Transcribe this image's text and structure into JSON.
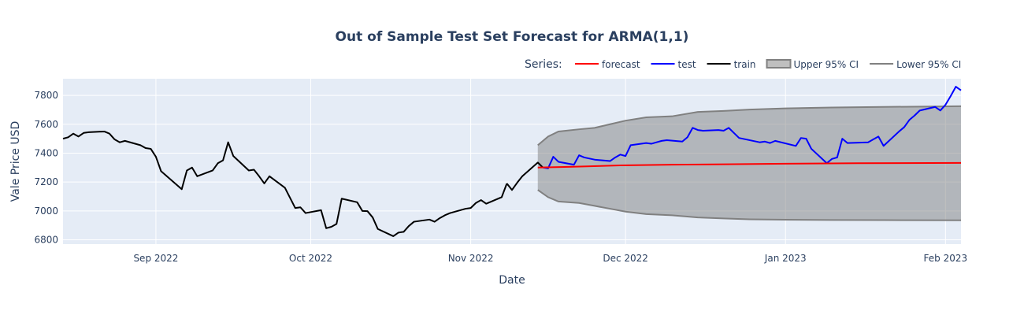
{
  "chart_data": {
    "type": "line",
    "title": "Out of Sample Test Set Forecast for ARMA(1,1)",
    "xlabel": "Date",
    "ylabel": "Vale Price USD",
    "xlim": [
      "2022-08-14",
      "2023-02-04"
    ],
    "ylim": [
      6770,
      7915
    ],
    "yticks": [
      6800,
      7000,
      7200,
      7400,
      7600,
      7800
    ],
    "xticks": [
      {
        "date": "2022-09-01",
        "label": "Sep 2022"
      },
      {
        "date": "2022-10-01",
        "label": "Oct 2022"
      },
      {
        "date": "2022-11-01",
        "label": "Nov 2022"
      },
      {
        "date": "2022-12-01",
        "label": "Dec 2022"
      },
      {
        "date": "2023-01-01",
        "label": "Jan 2023"
      },
      {
        "date": "2023-02-01",
        "label": "Feb 2023"
      }
    ],
    "grid": true,
    "legend": {
      "title": "Series:",
      "position": "top-right",
      "items": [
        {
          "name": "forecast",
          "color": "#ff0000",
          "kind": "line"
        },
        {
          "name": "test",
          "color": "#0000ff",
          "kind": "line"
        },
        {
          "name": "train",
          "color": "#000000",
          "kind": "line"
        },
        {
          "name": "Upper 95% CI",
          "color": "#808080",
          "kind": "fill"
        },
        {
          "name": "Lower 95% CI",
          "color": "#808080",
          "kind": "line"
        }
      ]
    },
    "series": [
      {
        "name": "train",
        "color": "#000000",
        "x": [
          "2022-08-14",
          "2022-08-15",
          "2022-08-16",
          "2022-08-17",
          "2022-08-18",
          "2022-08-19",
          "2022-08-22",
          "2022-08-23",
          "2022-08-24",
          "2022-08-25",
          "2022-08-26",
          "2022-08-29",
          "2022-08-30",
          "2022-08-31",
          "2022-09-01",
          "2022-09-02",
          "2022-09-06",
          "2022-09-07",
          "2022-09-08",
          "2022-09-09",
          "2022-09-12",
          "2022-09-13",
          "2022-09-14",
          "2022-09-15",
          "2022-09-16",
          "2022-09-19",
          "2022-09-20",
          "2022-09-21",
          "2022-09-22",
          "2022-09-23",
          "2022-09-26",
          "2022-09-27",
          "2022-09-28",
          "2022-09-29",
          "2022-09-30",
          "2022-10-03",
          "2022-10-04",
          "2022-10-05",
          "2022-10-06",
          "2022-10-07",
          "2022-10-10",
          "2022-10-11",
          "2022-10-12",
          "2022-10-13",
          "2022-10-14",
          "2022-10-17",
          "2022-10-18",
          "2022-10-19",
          "2022-10-20",
          "2022-10-21",
          "2022-10-24",
          "2022-10-25",
          "2022-10-26",
          "2022-10-27",
          "2022-10-28",
          "2022-10-31",
          "2022-11-01",
          "2022-11-02",
          "2022-11-03",
          "2022-11-04",
          "2022-11-07",
          "2022-11-08"
        ],
        "y": [
          7500,
          7510,
          7535,
          7515,
          7540,
          7545,
          7550,
          7535,
          7495,
          7475,
          7485,
          7455,
          7435,
          7430,
          7375,
          7275,
          7150,
          7280,
          7300,
          7240,
          7280,
          7330,
          7350,
          7475,
          7380,
          7280,
          7285,
          7240,
          7190,
          7240,
          7160,
          7090,
          7020,
          7025,
          6985,
          7005,
          6880,
          6890,
          6910,
          7085,
          7060,
          7000,
          6998,
          6955,
          6875,
          6825,
          6850,
          6855,
          6895,
          6925,
          6940,
          6925,
          6950,
          6970,
          6985,
          7015,
          7020,
          7055,
          7075,
          7050,
          7095,
          7190
        ]
      },
      {
        "name": "train_tail",
        "color": "#000000",
        "x": [
          "2022-11-08",
          "2022-11-09",
          "2022-11-10",
          "2022-11-11",
          "2022-11-14",
          "2022-11-15"
        ],
        "y": [
          7190,
          7145,
          7195,
          7240,
          7335,
          7300
        ]
      },
      {
        "name": "test",
        "color": "#0000ff",
        "x": [
          "2022-11-15",
          "2022-11-16",
          "2022-11-17",
          "2022-11-18",
          "2022-11-21",
          "2022-11-22",
          "2022-11-23",
          "2022-11-25",
          "2022-11-28",
          "2022-11-29",
          "2022-11-30",
          "2022-12-01",
          "2022-12-02",
          "2022-12-05",
          "2022-12-06",
          "2022-12-07",
          "2022-12-08",
          "2022-12-09",
          "2022-12-12",
          "2022-12-13",
          "2022-12-14",
          "2022-12-15",
          "2022-12-16",
          "2022-12-19",
          "2022-12-20",
          "2022-12-21",
          "2022-12-22",
          "2022-12-23",
          "2022-12-27",
          "2022-12-28",
          "2022-12-29",
          "2022-12-30",
          "2023-01-03",
          "2023-01-04",
          "2023-01-05",
          "2023-01-06",
          "2023-01-09",
          "2023-01-10",
          "2023-01-11",
          "2023-01-12",
          "2023-01-13",
          "2023-01-17",
          "2023-01-18",
          "2023-01-19",
          "2023-01-20",
          "2023-01-23",
          "2023-01-24",
          "2023-01-25",
          "2023-01-26",
          "2023-01-27",
          "2023-01-30",
          "2023-01-31",
          "2023-02-01",
          "2023-02-02",
          "2023-02-03",
          "2023-02-04"
        ],
        "y": [
          7300,
          7295,
          7375,
          7340,
          7320,
          7385,
          7370,
          7355,
          7345,
          7370,
          7390,
          7380,
          7455,
          7470,
          7465,
          7475,
          7485,
          7490,
          7480,
          7510,
          7575,
          7560,
          7555,
          7560,
          7555,
          7575,
          7540,
          7505,
          7475,
          7480,
          7470,
          7485,
          7450,
          7505,
          7500,
          7430,
          7330,
          7360,
          7370,
          7500,
          7470,
          7475,
          7495,
          7515,
          7450,
          7550,
          7580,
          7630,
          7660,
          7695,
          7720,
          7695,
          7735,
          7795,
          7860,
          7835
        ]
      },
      {
        "name": "forecast",
        "color": "#ff0000",
        "x": [
          "2022-11-14",
          "2022-11-20",
          "2022-11-30",
          "2022-12-10",
          "2022-12-20",
          "2023-01-01",
          "2023-01-15",
          "2023-02-04"
        ],
        "y": [
          7300,
          7305,
          7315,
          7320,
          7323,
          7327,
          7330,
          7332
        ]
      }
    ]
  }
}
